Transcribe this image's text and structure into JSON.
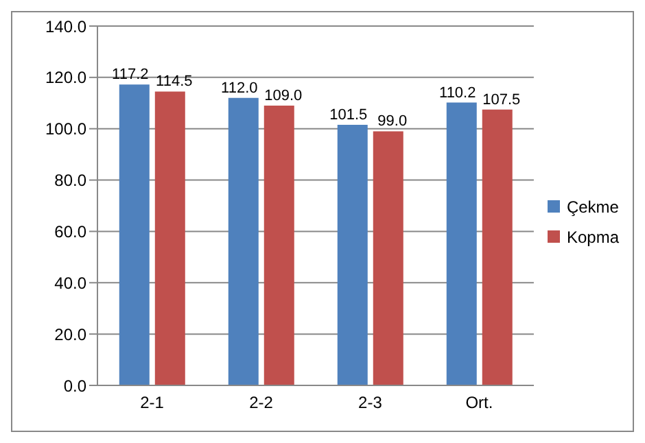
{
  "chart_data": {
    "type": "bar",
    "categories": [
      "2-1",
      "2-2",
      "2-3",
      "Ort."
    ],
    "series": [
      {
        "name": "Çekme",
        "color": "#4f81bd",
        "values": [
          117.2,
          112.0,
          101.5,
          110.2
        ],
        "value_labels": [
          "117.2",
          "112.0",
          "101.5",
          "110.2"
        ]
      },
      {
        "name": "Kopma",
        "color": "#c0504d",
        "values": [
          114.5,
          109.0,
          99.0,
          107.5
        ],
        "value_labels": [
          "114.5",
          "109.0",
          "99.0",
          "107.5"
        ]
      }
    ],
    "ylim": [
      0,
      140
    ],
    "yticks": [
      {
        "value": 0,
        "label": "0.0"
      },
      {
        "value": 20,
        "label": "20.0"
      },
      {
        "value": 40,
        "label": "40.0"
      },
      {
        "value": 60,
        "label": "60.0"
      },
      {
        "value": 80,
        "label": "80.0"
      },
      {
        "value": 100,
        "label": "100.0"
      },
      {
        "value": 120,
        "label": "120.0"
      },
      {
        "value": 140,
        "label": "140.0"
      }
    ],
    "grid": "y",
    "legend": "right"
  }
}
